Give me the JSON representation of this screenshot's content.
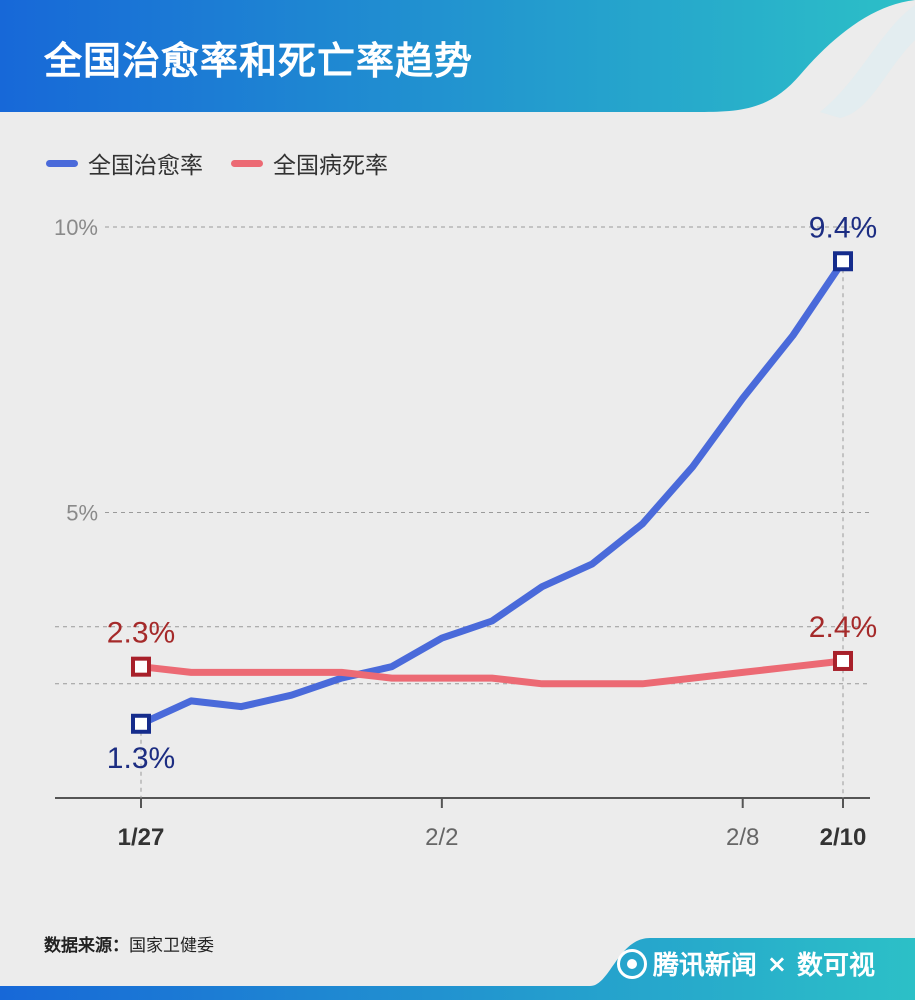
{
  "header": {
    "title": "全国治愈率和死亡率趋势"
  },
  "colors": {
    "header_start": "#1768d8",
    "header_end": "#2cc0c7",
    "cure": "#4a6ada",
    "death": "#ec6a74",
    "cure_label": "#1c2d82",
    "death_label": "#a52a2a",
    "cure_marker": "#152c8c",
    "death_marker": "#a8202a"
  },
  "chart_data": {
    "type": "line",
    "title": "全国治愈率和死亡率趋势",
    "xlabel": "",
    "ylabel": "",
    "x": [
      "1/27",
      "1/28",
      "1/29",
      "1/30",
      "1/31",
      "2/1",
      "2/2",
      "2/3",
      "2/4",
      "2/5",
      "2/6",
      "2/7",
      "2/8",
      "2/9",
      "2/10"
    ],
    "x_ticks": [
      "1/27",
      "2/2",
      "2/8",
      "2/10"
    ],
    "x_ticks_bold": [
      "1/27",
      "2/10"
    ],
    "y_ticks": [
      "5%",
      "10%"
    ],
    "ylim": [
      0,
      10
    ],
    "grid": true,
    "legend_position": "top-left",
    "series": [
      {
        "name": "全国治愈率",
        "values": [
          1.3,
          1.7,
          1.6,
          1.8,
          2.1,
          2.3,
          2.8,
          3.1,
          3.7,
          4.1,
          4.8,
          5.8,
          7.0,
          8.1,
          9.4
        ],
        "start_label": "1.3%",
        "end_label": "9.4%"
      },
      {
        "name": "全国病死率",
        "values": [
          2.3,
          2.2,
          2.2,
          2.2,
          2.2,
          2.1,
          2.1,
          2.1,
          2.0,
          2.0,
          2.0,
          2.1,
          2.2,
          2.3,
          2.4
        ],
        "start_label": "2.3%",
        "end_label": "2.4%"
      }
    ]
  },
  "footer": {
    "source_label": "数据来源：",
    "source_value": "国家卫健委",
    "brand_name": "腾讯新闻",
    "brand_cross": "×",
    "brand_partner": "数可视"
  }
}
